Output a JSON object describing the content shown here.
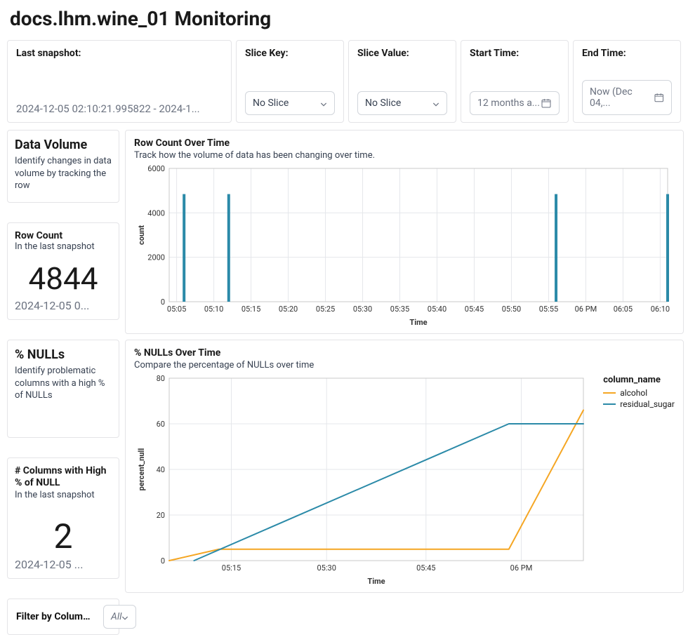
{
  "page_title": "docs.lhm.wine_01 Monitoring",
  "filters": {
    "snapshot": {
      "label": "Last snapshot:",
      "value": "2024-12-05 02:10:21.995822 - 2024-1..."
    },
    "slice_key": {
      "label": "Slice Key:",
      "value": "No Slice"
    },
    "slice_value": {
      "label": "Slice Value:",
      "value": "No Slice"
    },
    "start_time": {
      "label": "Start Time:",
      "value": "12 months a..."
    },
    "end_time": {
      "label": "End Time:",
      "value": "Now (Dec 04,..."
    }
  },
  "left": {
    "data_volume": {
      "title": "Data Volume",
      "desc": "Identify changes in data volume by tracking the row"
    },
    "row_count": {
      "title": "Row Count",
      "sub": "In the last snapshot",
      "value": "4844",
      "ts": "2024-12-05 0..."
    },
    "pct_nulls": {
      "title": "% NULLs",
      "desc": "Identify problematic columns with a high % of NULLs"
    },
    "high_null_cols": {
      "title": "# Columns with High % of NULL",
      "sub": "In the last snapshot",
      "value": "2",
      "ts": "2024-12-05 ..."
    }
  },
  "row_count_chart": {
    "type": "bar",
    "title": "Row Count Over Time",
    "sub": "Track how the volume of data has been changing over time.",
    "xlabel": "Time",
    "ylabel": "count",
    "ylim": [
      0,
      6000
    ],
    "yticks": [
      0,
      2000,
      4000,
      6000
    ],
    "xticks": [
      "05:05",
      "05:10",
      "05:15",
      "05:20",
      "05:25",
      "05:30",
      "05:35",
      "05:40",
      "05:45",
      "05:50",
      "05:55",
      "06 PM",
      "06:05",
      "06:10"
    ],
    "bar_color": "#2b8aa8",
    "grid_color": "#e5e7eb",
    "background_color": "#ffffff",
    "bars": [
      {
        "x": "05:06",
        "value": 4844
      },
      {
        "x": "05:12",
        "value": 4844
      },
      {
        "x": "05:56",
        "value": 4844
      },
      {
        "x": "06:11",
        "value": 4844
      }
    ]
  },
  "filter_by_column": {
    "label": "Filter by Column ...",
    "value": "All"
  },
  "nulls_chart": {
    "type": "line",
    "title": "% NULLs Over Time",
    "sub": "Compare the percentage of NULLs over time",
    "xlabel": "Time",
    "ylabel": "percent_null",
    "ylim": [
      0,
      80
    ],
    "yticks": [
      0,
      20,
      40,
      60,
      80
    ],
    "xticks": [
      "05:15",
      "05:30",
      "05:45",
      "06 PM"
    ],
    "grid_color": "#e5e7eb",
    "background_color": "#ffffff",
    "legend_title": "column_name",
    "series": [
      {
        "name": "alcohol",
        "color": "#f5a623",
        "points": [
          {
            "t": 0.0,
            "v": 0
          },
          {
            "t": 0.12,
            "v": 5
          },
          {
            "t": 0.82,
            "v": 5
          },
          {
            "t": 1.0,
            "v": 66
          }
        ]
      },
      {
        "name": "residual_sugar",
        "color": "#2b8aa8",
        "points": [
          {
            "t": 0.06,
            "v": 0
          },
          {
            "t": 0.82,
            "v": 60
          },
          {
            "t": 1.0,
            "v": 60
          }
        ]
      }
    ]
  }
}
